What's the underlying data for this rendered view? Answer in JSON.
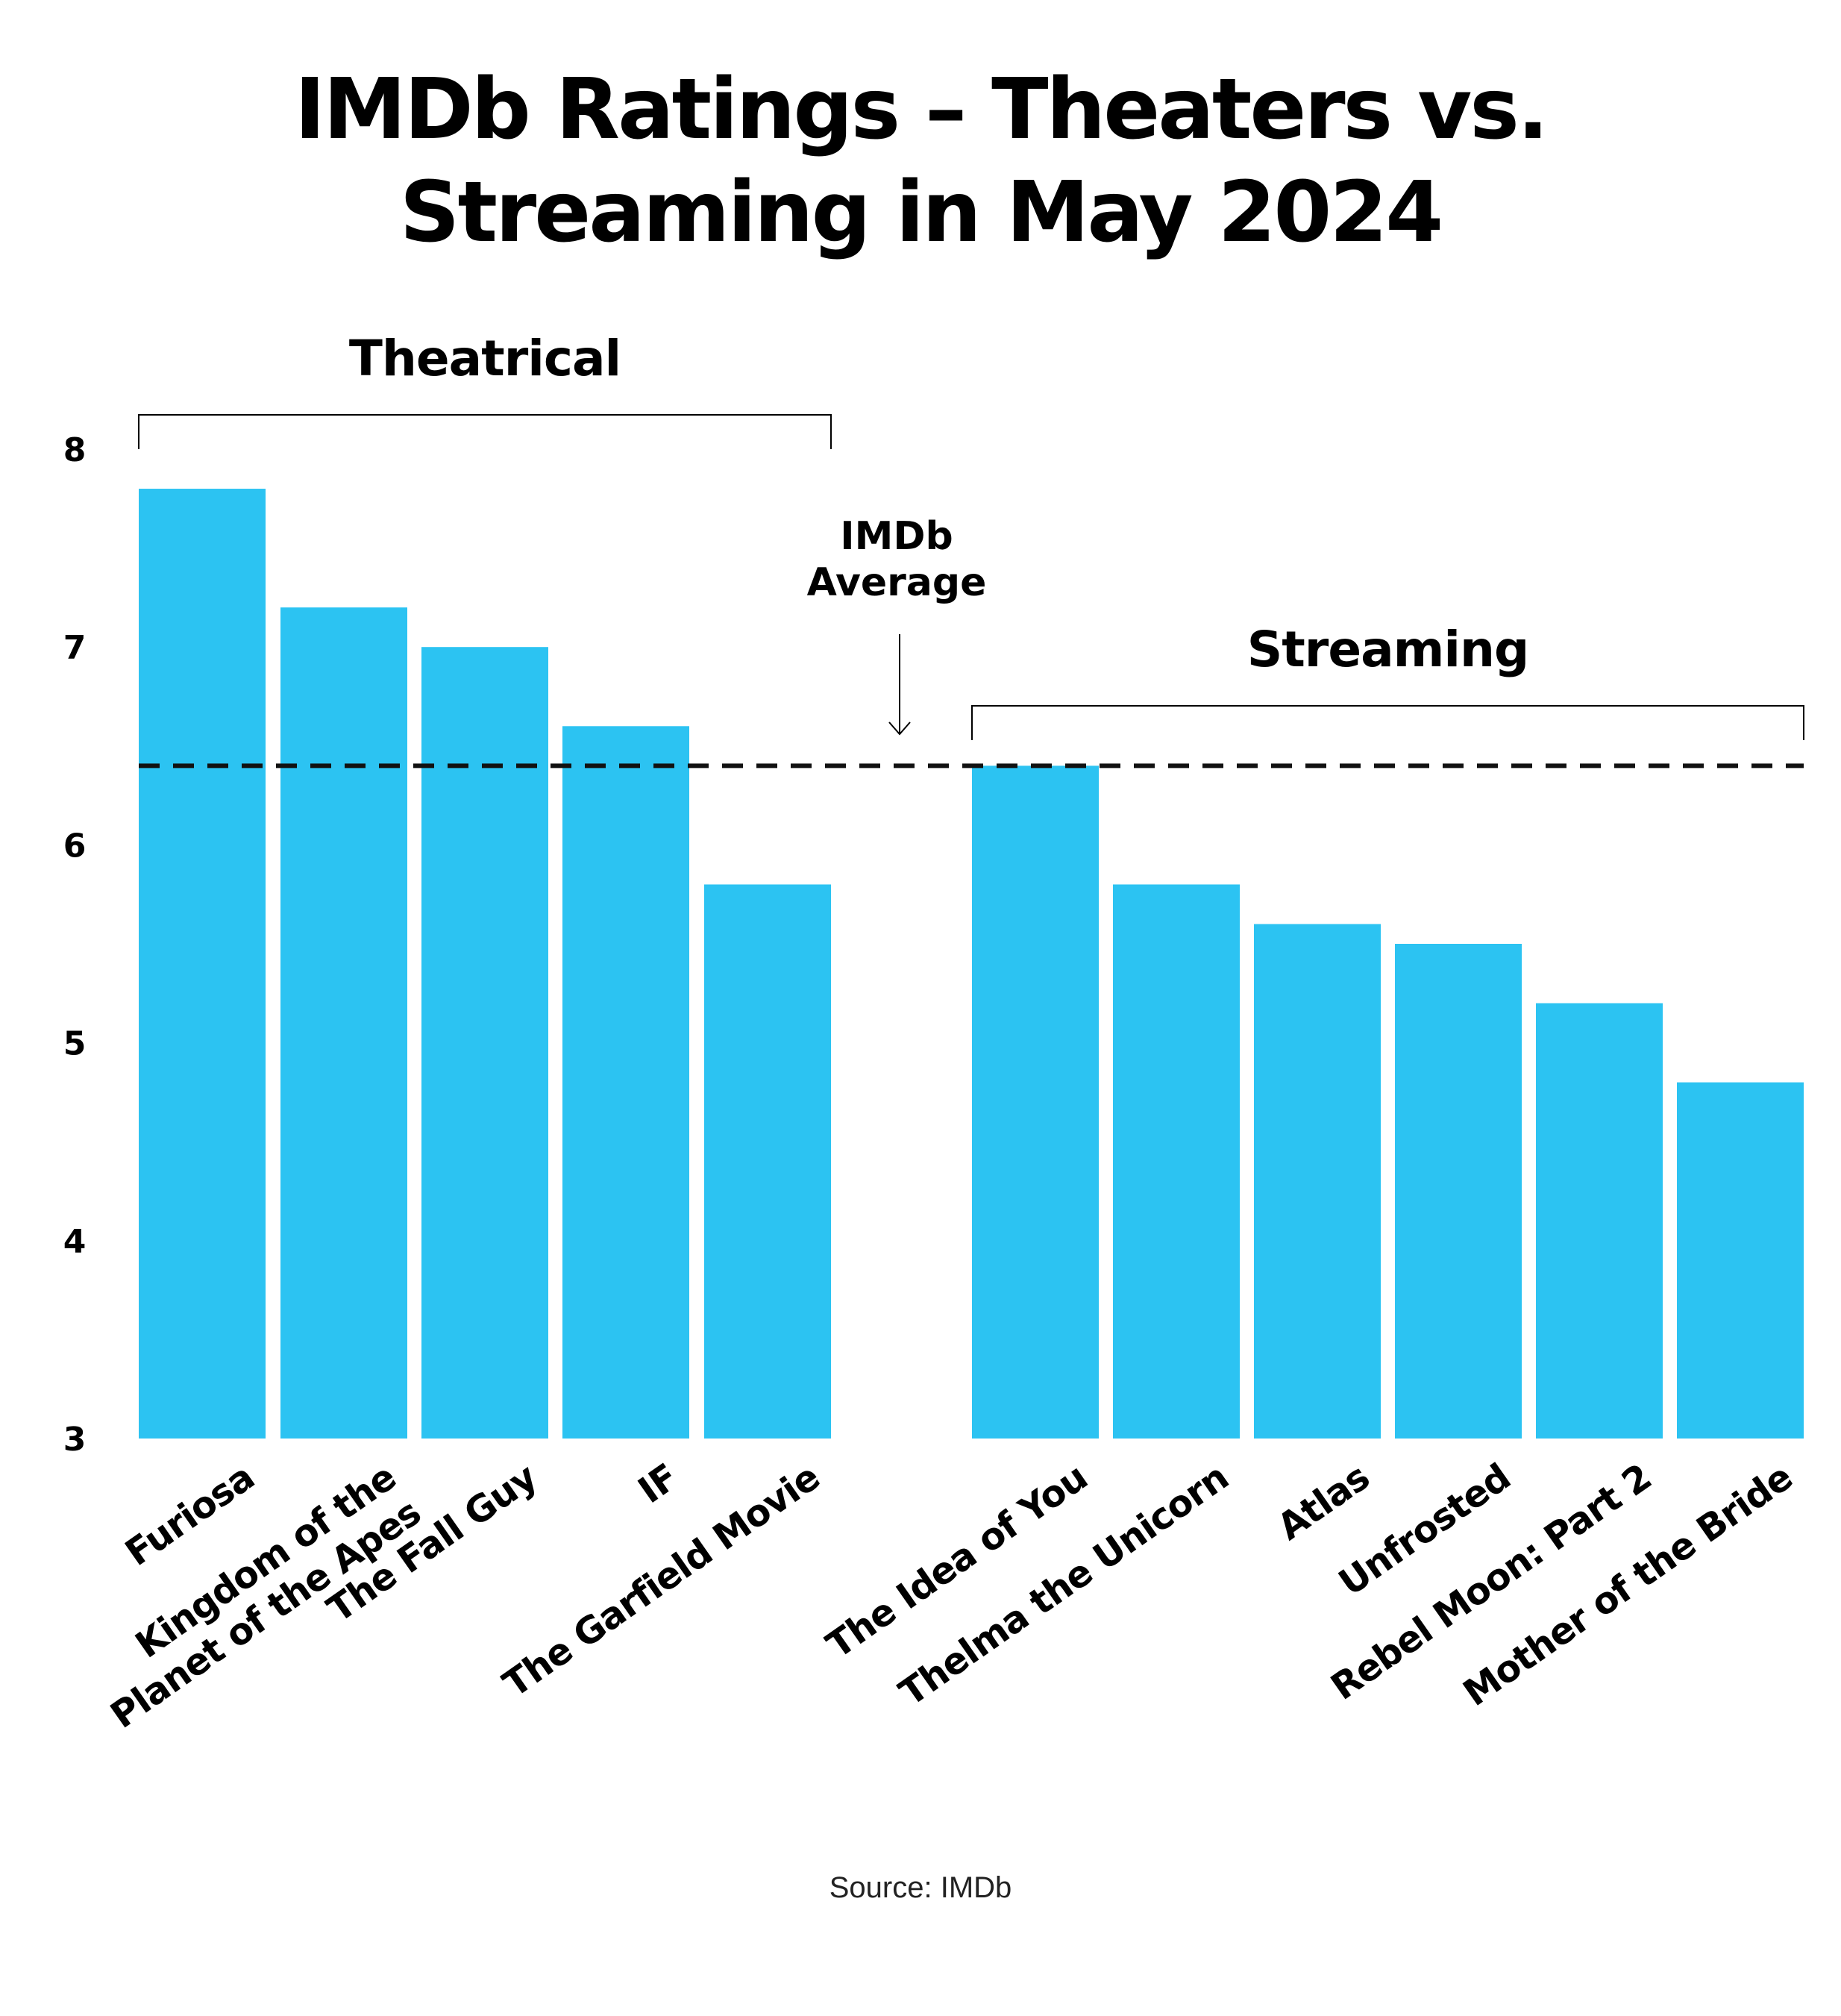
{
  "title_lines": [
    "IMDb Ratings – Theaters vs.",
    "Streaming in May 2024"
  ],
  "source": "Source: IMDb",
  "chart_data": {
    "type": "bar",
    "categories": [
      "Furiosa",
      "Kingdom of the Planet of the Apes",
      "The Fall Guy",
      "IF",
      "The Garfield Movie",
      "The Idea of You",
      "Thelma the Unicorn",
      "Atlas",
      "Unfrosted",
      "Rebel Moon: Part 2",
      "Mother of the Bride"
    ],
    "category_label_lines": [
      [
        "Furiosa"
      ],
      [
        "Kingdom of the",
        "Planet of the Apes"
      ],
      [
        "The Fall Guy"
      ],
      [
        "IF"
      ],
      [
        "The Garfield Movie"
      ],
      [
        "The Idea of You"
      ],
      [
        "Thelma the Unicorn"
      ],
      [
        "Atlas"
      ],
      [
        "Unfrosted"
      ],
      [
        "Rebel Moon: Part 2"
      ],
      [
        "Mother of the Bride"
      ]
    ],
    "values": [
      7.8,
      7.2,
      7.0,
      6.6,
      5.8,
      6.4,
      5.8,
      5.6,
      5.5,
      5.2,
      4.8
    ],
    "groups": [
      {
        "label": "Theatrical",
        "members": [
          "Furiosa",
          "Kingdom of the Planet of the Apes",
          "The Fall Guy",
          "IF",
          "The Garfield Movie"
        ]
      },
      {
        "label": "Streaming",
        "members": [
          "The Idea of You",
          "Thelma the Unicorn",
          "Atlas",
          "Unfrosted",
          "Rebel Moon: Part 2",
          "Mother of the Bride"
        ]
      }
    ],
    "reference_line": {
      "label_lines": [
        "IMDb",
        "Average"
      ],
      "value": 6.4
    },
    "ylim": [
      3,
      8
    ],
    "yticks": [
      3,
      4,
      5,
      6,
      7,
      8
    ],
    "title": "IMDb Ratings – Theaters vs. Streaming in May 2024",
    "xlabel": "",
    "ylabel": "",
    "grid": false,
    "legend": "none",
    "colors": {
      "bar": "#2CC3F2",
      "text": "#000000",
      "reference": "#111111"
    }
  }
}
